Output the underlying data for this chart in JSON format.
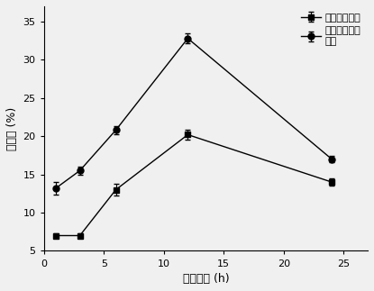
{
  "x": [
    1,
    3,
    6,
    12,
    24
  ],
  "series1_y": [
    7.0,
    7.0,
    13.0,
    20.2,
    14.0
  ],
  "series1_yerr": [
    0.3,
    0.3,
    0.8,
    0.7,
    0.5
  ],
  "series1_label": "普通玉米淠粉",
  "series1_marker": "s",
  "series2_y": [
    13.2,
    15.5,
    20.8,
    32.8,
    17.0
  ],
  "series2_yerr": [
    0.8,
    0.5,
    0.5,
    0.6,
    0.4
  ],
  "series2_label": "脱支后的玉米\n淠粉",
  "series2_marker": "o",
  "xlabel": "反应时间 (h)",
  "ylabel": "转化率 (%)",
  "xlim": [
    0,
    27
  ],
  "ylim": [
    5,
    37
  ],
  "xticks": [
    0,
    5,
    10,
    15,
    20,
    25
  ],
  "yticks": [
    5,
    10,
    15,
    20,
    25,
    30,
    35
  ],
  "line_color": "#000000",
  "marker_color": "#000000",
  "marker_size": 5,
  "linewidth": 1.0,
  "capsize": 2,
  "elinewidth": 0.8,
  "legend_fontsize": 8,
  "axis_fontsize": 9,
  "tick_fontsize": 8,
  "background_color": "#f0f0f0"
}
